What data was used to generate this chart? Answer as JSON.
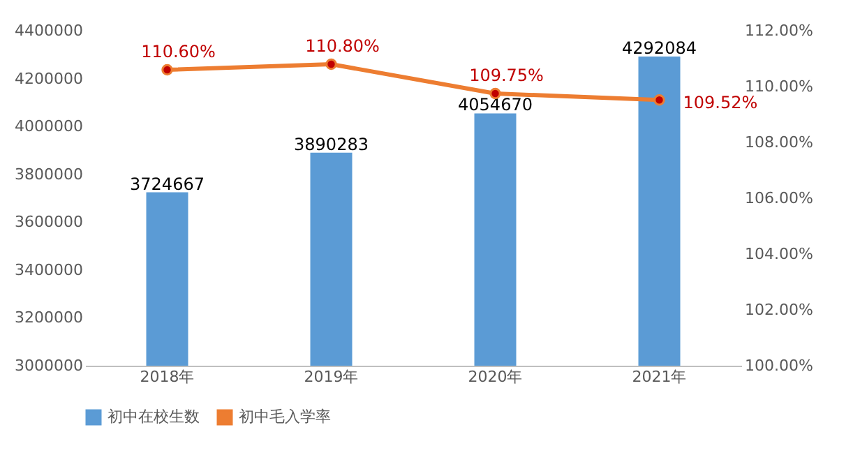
{
  "chart_data": {
    "type": "bar",
    "categories": [
      "2018年",
      "2019年",
      "2020年",
      "2021年"
    ],
    "series": [
      {
        "name": "初中在校生数",
        "color": "#5b9bd5",
        "values": [
          3724667,
          3890283,
          4054670,
          4292084
        ],
        "value_labels": [
          "3724667",
          "3890283",
          "4054670",
          "4292084"
        ]
      },
      {
        "name": "初中毛入学率",
        "type": "line",
        "axis": "y2",
        "color": "#ed7d31",
        "values": [
          110.6,
          110.8,
          109.75,
          109.52
        ],
        "value_labels": [
          "110.60%",
          "110.80%",
          "109.75%",
          "109.52%"
        ]
      }
    ],
    "ylim": [
      3000000,
      4400000
    ],
    "yticks": [
      3000000,
      3200000,
      3400000,
      3600000,
      3800000,
      4000000,
      4200000,
      4400000
    ],
    "y2lim": [
      100,
      112
    ],
    "y2ticks": [
      {
        "value": 100,
        "label": "100.00%"
      },
      {
        "value": 102,
        "label": "102.00%"
      },
      {
        "value": 104,
        "label": "104.00%"
      },
      {
        "value": 106,
        "label": "106.00%"
      },
      {
        "value": 108,
        "label": "108.00%"
      },
      {
        "value": 110,
        "label": "110.00%"
      },
      {
        "value": 112,
        "label": "112.00%"
      }
    ],
    "legend": "bottom",
    "marker": "circle",
    "line_style": "solid"
  }
}
